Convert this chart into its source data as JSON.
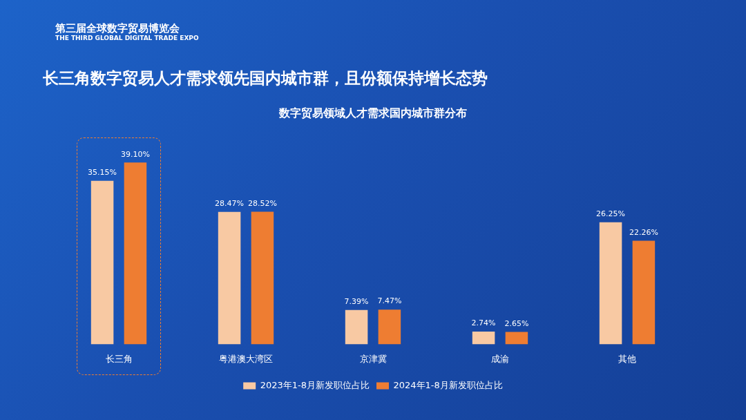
{
  "chart_data": {
    "type": "bar",
    "title": "长三角数字贸易人才需求领先国内城市群，且份额保持增长态势",
    "subtitle": "数字贸易领域人才需求国内城市群分布",
    "categories": [
      "长三角",
      "粤港澳大湾区",
      "京津冀",
      "成渝",
      "其他"
    ],
    "series": [
      {
        "name": "2023年1-8月新发职位占比",
        "color": "#f8c9a3",
        "values": [
          35.15,
          28.47,
          7.39,
          2.74,
          26.25
        ],
        "value_labels": [
          "35.15%",
          "28.47%",
          "7.39%",
          "2.74%",
          "26.25%"
        ]
      },
      {
        "name": "2024年1-8月新发职位占比",
        "color": "#ee7d32",
        "values": [
          39.1,
          28.52,
          7.47,
          2.65,
          22.26
        ],
        "value_labels": [
          "39.10%",
          "28.52%",
          "7.47%",
          "2.65%",
          "22.26%"
        ]
      }
    ],
    "legend": "bottom",
    "grid": false,
    "annotations": [
      "第三届全球数字贸易博览会",
      "THE THIRD GLOBAL DIGITAL TRADE EXPO"
    ]
  }
}
